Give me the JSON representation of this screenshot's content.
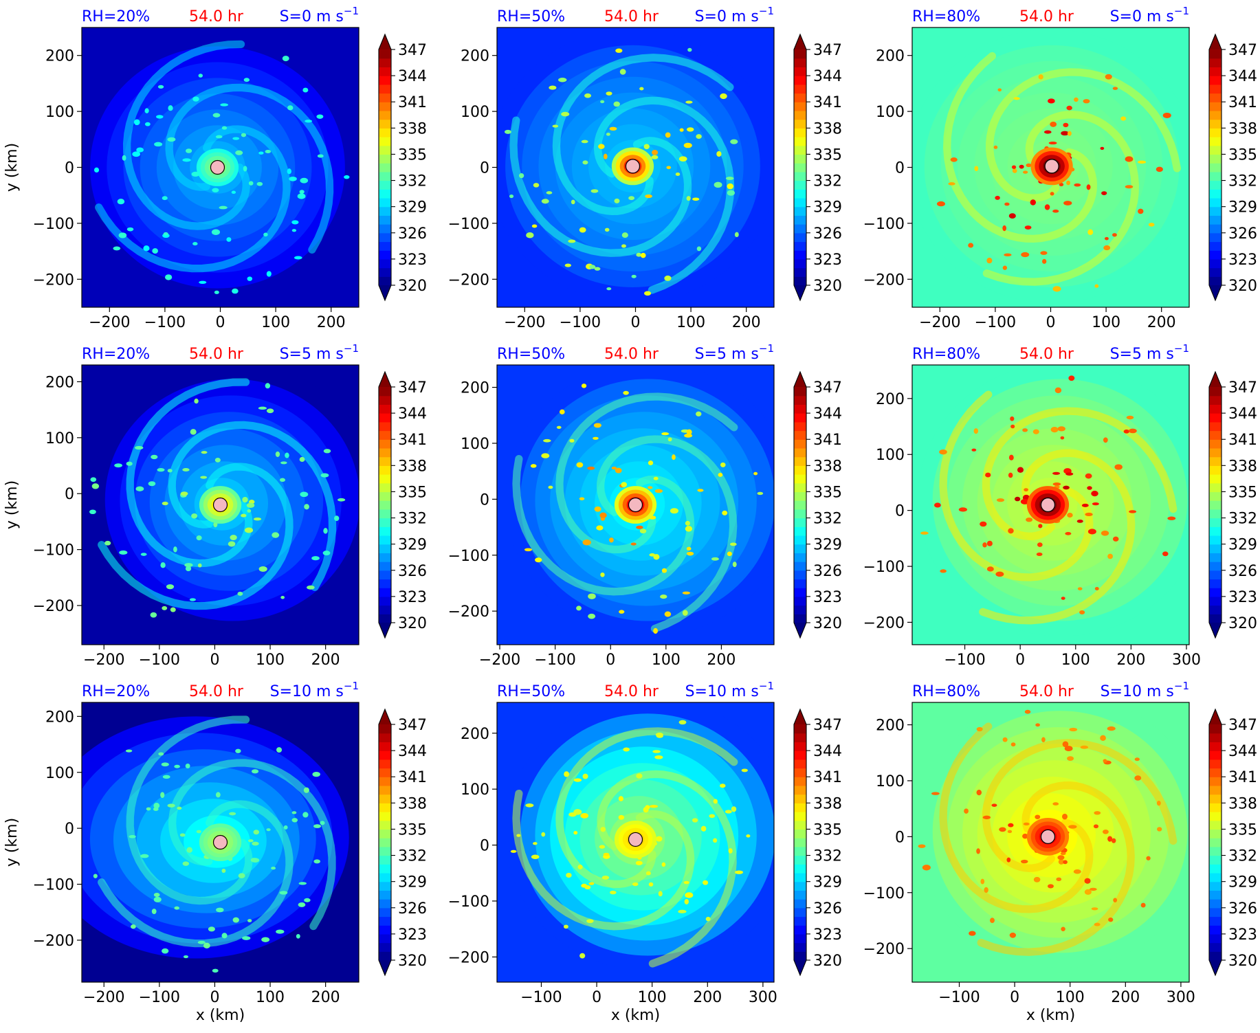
{
  "figure": {
    "colorbar_ticks": [
      "320",
      "323",
      "326",
      "329",
      "332",
      "335",
      "338",
      "341",
      "344",
      "347"
    ],
    "colors": {
      "panel_title_left": "#0000ff",
      "panel_title_mid": "#ff0000",
      "panel_title_right": "#0000ff",
      "center_marker": "#f4b8c0"
    },
    "xlabel": "x (km)",
    "ylabel": "y (km)",
    "time": "54.0 hr",
    "rows": [
      {
        "shear": "S=0 m s",
        "shear_exp": "−1"
      },
      {
        "shear": "S=5 m s",
        "shear_exp": "−1"
      },
      {
        "shear": "S=10 m s",
        "shear_exp": "−1"
      }
    ],
    "cols": [
      {
        "rh": "RH=20%"
      },
      {
        "rh": "RH=50%"
      },
      {
        "rh": "RH=80%"
      }
    ]
  },
  "chart_data": [
    {
      "type": "heatmap",
      "panel": "r0c0",
      "title_left": "RH=20%",
      "title_mid": "54.0 hr",
      "title_right": "S=0 m s^-1",
      "xlim": [
        -250,
        250
      ],
      "ylim": [
        -250,
        250
      ],
      "xticks": [
        -200,
        -100,
        0,
        100,
        200
      ],
      "yticks": [
        -200,
        -100,
        0,
        100,
        200
      ],
      "xticklabels": [
        "−200",
        "−100",
        "0",
        "100",
        "200"
      ],
      "yticklabels": [
        "−200",
        "−100",
        "0",
        "100",
        "200"
      ],
      "center": [
        -5,
        0
      ],
      "colorbar": {
        "min": 320,
        "max": 347,
        "ticks": [
          320,
          323,
          326,
          329,
          332,
          335,
          338,
          341,
          344,
          347
        ]
      }
    },
    {
      "type": "heatmap",
      "panel": "r0c1",
      "title_left": "RH=50%",
      "title_mid": "54.0 hr",
      "title_right": "S=0 m s^-1",
      "xlim": [
        -250,
        250
      ],
      "ylim": [
        -250,
        250
      ],
      "xticks": [
        -200,
        -100,
        0,
        100,
        200
      ],
      "yticks": [
        -200,
        -100,
        0,
        100,
        200
      ],
      "xticklabels": [
        "−200",
        "−100",
        "0",
        "100",
        "200"
      ],
      "yticklabels": [
        "−200",
        "−100",
        "0",
        "100",
        "200"
      ],
      "center": [
        -5,
        2
      ],
      "colorbar": {
        "min": 320,
        "max": 347,
        "ticks": [
          320,
          323,
          326,
          329,
          332,
          335,
          338,
          341,
          344,
          347
        ]
      }
    },
    {
      "type": "heatmap",
      "panel": "r0c2",
      "title_left": "RH=80%",
      "title_mid": "54.0 hr",
      "title_right": "S=0 m s^-1",
      "xlim": [
        -250,
        250
      ],
      "ylim": [
        -250,
        250
      ],
      "xticks": [
        -200,
        -100,
        0,
        100,
        200
      ],
      "yticks": [
        -200,
        -100,
        0,
        100,
        200
      ],
      "xticklabels": [
        "−200",
        "−100",
        "0",
        "100",
        "200"
      ],
      "yticklabels": [
        "−200",
        "−100",
        "0",
        "100",
        "200"
      ],
      "center": [
        2,
        2
      ],
      "colorbar": {
        "min": 320,
        "max": 347,
        "ticks": [
          320,
          323,
          326,
          329,
          332,
          335,
          338,
          341,
          344,
          347
        ]
      }
    },
    {
      "type": "heatmap",
      "panel": "r1c0",
      "title_left": "RH=20%",
      "title_mid": "54.0 hr",
      "title_right": "S=5 m s^-1",
      "xlim": [
        -240,
        260
      ],
      "ylim": [
        -270,
        230
      ],
      "xticks": [
        -200,
        -100,
        0,
        100,
        200
      ],
      "yticks": [
        -200,
        -100,
        0,
        100,
        200
      ],
      "xticklabels": [
        "−200",
        "−100",
        "0",
        "100",
        "200"
      ],
      "yticklabels": [
        "−200",
        "−100",
        "0",
        "100",
        "200"
      ],
      "center": [
        10,
        -20
      ],
      "colorbar": {
        "min": 320,
        "max": 347,
        "ticks": [
          320,
          323,
          326,
          329,
          332,
          335,
          338,
          341,
          344,
          347
        ]
      }
    },
    {
      "type": "heatmap",
      "panel": "r1c1",
      "title_left": "RH=50%",
      "title_mid": "54.0 hr",
      "title_right": "S=5 m s^-1",
      "xlim": [
        -205,
        295
      ],
      "ylim": [
        -260,
        240
      ],
      "xticks": [
        -200,
        -100,
        0,
        100,
        200
      ],
      "yticks": [
        -200,
        -100,
        0,
        100,
        200
      ],
      "xticklabels": [
        "−200",
        "−100",
        "0",
        "100",
        "200"
      ],
      "yticklabels": [
        "−200",
        "−100",
        "0",
        "100",
        "200"
      ],
      "center": [
        45,
        -10
      ],
      "colorbar": {
        "min": 320,
        "max": 347,
        "ticks": [
          320,
          323,
          326,
          329,
          332,
          335,
          338,
          341,
          344,
          347
        ]
      }
    },
    {
      "type": "heatmap",
      "panel": "r1c2",
      "title_left": "RH=80%",
      "title_mid": "54.0 hr",
      "title_right": "S=5 m s^-1",
      "xlim": [
        -195,
        305
      ],
      "ylim": [
        -240,
        260
      ],
      "xticks": [
        -100,
        0,
        100,
        200,
        300
      ],
      "yticks": [
        -200,
        -100,
        0,
        100,
        200
      ],
      "xticklabels": [
        "−100",
        "0",
        "100",
        "200",
        "300"
      ],
      "yticklabels": [
        "−200",
        "−100",
        "0",
        "100",
        "200"
      ],
      "center": [
        50,
        10
      ],
      "colorbar": {
        "min": 320,
        "max": 347,
        "ticks": [
          320,
          323,
          326,
          329,
          332,
          335,
          338,
          341,
          344,
          347
        ]
      }
    },
    {
      "type": "heatmap",
      "panel": "r2c0",
      "title_left": "RH=20%",
      "title_mid": "54.0 hr",
      "title_right": "S=10 m s^-1",
      "xlim": [
        -240,
        260
      ],
      "ylim": [
        -275,
        225
      ],
      "xticks": [
        -200,
        -100,
        0,
        100,
        200
      ],
      "yticks": [
        -200,
        -100,
        0,
        100,
        200
      ],
      "xticklabels": [
        "−200",
        "−100",
        "0",
        "100",
        "200"
      ],
      "yticklabels": [
        "−200",
        "−100",
        "0",
        "100",
        "200"
      ],
      "center": [
        10,
        -25
      ],
      "colorbar": {
        "min": 320,
        "max": 347,
        "ticks": [
          320,
          323,
          326,
          329,
          332,
          335,
          338,
          341,
          344,
          347
        ]
      }
    },
    {
      "type": "heatmap",
      "panel": "r2c1",
      "title_left": "RH=50%",
      "title_mid": "54.0 hr",
      "title_right": "S=10 m s^-1",
      "xlim": [
        -180,
        320
      ],
      "ylim": [
        -245,
        255
      ],
      "xticks": [
        -100,
        0,
        100,
        200,
        300
      ],
      "yticks": [
        -200,
        -100,
        0,
        100,
        200
      ],
      "xticklabels": [
        "−100",
        "0",
        "100",
        "200",
        "300"
      ],
      "yticklabels": [
        "−200",
        "−100",
        "0",
        "100",
        "200"
      ],
      "center": [
        70,
        10
      ],
      "colorbar": {
        "min": 320,
        "max": 347,
        "ticks": [
          320,
          323,
          326,
          329,
          332,
          335,
          338,
          341,
          344,
          347
        ]
      }
    },
    {
      "type": "heatmap",
      "panel": "r2c2",
      "title_left": "RH=80%",
      "title_mid": "54.0 hr",
      "title_right": "S=10 m s^-1",
      "xlim": [
        -185,
        315
      ],
      "ylim": [
        -260,
        240
      ],
      "xticks": [
        -100,
        0,
        100,
        200,
        300
      ],
      "yticks": [
        -200,
        -100,
        0,
        100,
        200
      ],
      "xticklabels": [
        "−100",
        "0",
        "100",
        "200",
        "300"
      ],
      "yticklabels": [
        "−200",
        "−100",
        "0",
        "100",
        "200"
      ],
      "center": [
        60,
        0
      ],
      "colorbar": {
        "min": 320,
        "max": 347,
        "ticks": [
          320,
          323,
          326,
          329,
          332,
          335,
          338,
          341,
          344,
          347
        ]
      }
    }
  ]
}
